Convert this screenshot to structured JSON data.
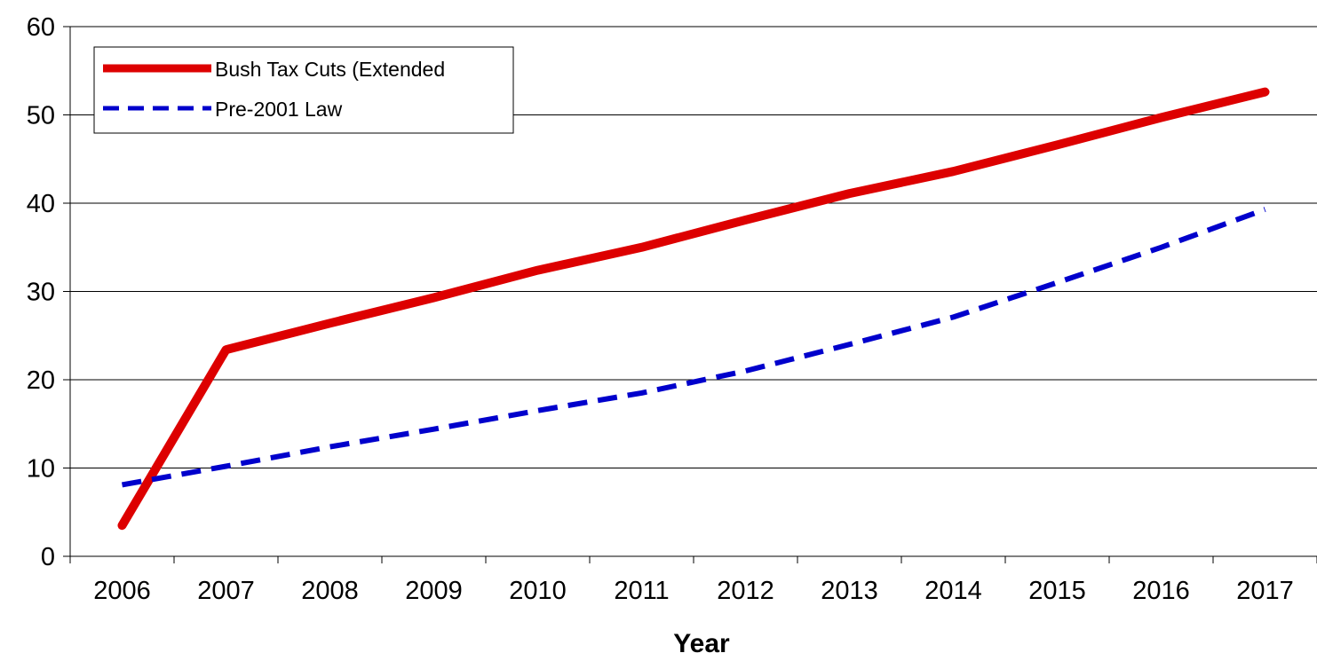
{
  "chart_data": {
    "type": "line",
    "title": "",
    "xlabel": "Year",
    "ylabel": "",
    "categories": [
      "2006",
      "2007",
      "2008",
      "2009",
      "2010",
      "2011",
      "2012",
      "2013",
      "2014",
      "2015",
      "2016",
      "2017"
    ],
    "ylim": [
      0,
      60
    ],
    "yticks": [
      "0",
      "10",
      "20",
      "30",
      "40",
      "50",
      "60"
    ],
    "grid": true,
    "legend_position": "top-left",
    "series": [
      {
        "name": "Bush Tax Cuts (Extended",
        "values": [
          3.5,
          23.4,
          26.4,
          29.3,
          32.4,
          35.0,
          38.1,
          41.1,
          43.6,
          46.6,
          49.7,
          52.6
        ],
        "color": "#dd0000",
        "style": "solid"
      },
      {
        "name": "Pre-2001 Law",
        "values": [
          8.1,
          10.2,
          12.4,
          14.4,
          16.5,
          18.5,
          21.0,
          24.0,
          27.1,
          31.0,
          35.0,
          39.3
        ],
        "color": "#0000cc",
        "style": "dashed"
      }
    ]
  }
}
